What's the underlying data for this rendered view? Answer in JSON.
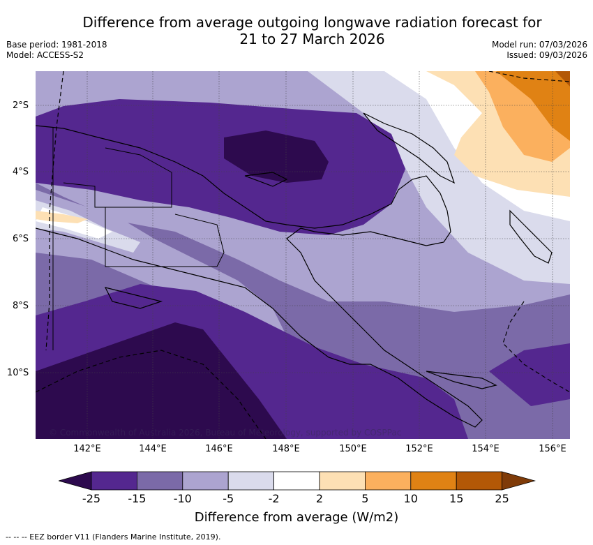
{
  "title": {
    "line1": "Difference from average outgoing longwave radiation forecast for",
    "line2": "21 to 27 March 2026"
  },
  "meta": {
    "base_period": "Base period: 1981-2018",
    "model": "Model: ACCESS-S2",
    "model_run": "Model run: 07/03/2026",
    "issued": "Issued: 09/03/2026"
  },
  "axes": {
    "lat_labels": [
      "2°S",
      "4°S",
      "6°S",
      "8°S",
      "10°S"
    ],
    "lon_labels": [
      "142°E",
      "144°E",
      "146°E",
      "148°E",
      "150°E",
      "152°E",
      "154°E",
      "156°E"
    ]
  },
  "colorbar": {
    "ticks": [
      "-25",
      "-15",
      "-10",
      "-5",
      "-2",
      "2",
      "5",
      "10",
      "15",
      "25"
    ],
    "colors": [
      "#2d0a4e",
      "#54278f",
      "#7b6aa8",
      "#aca4d0",
      "#dadbec",
      "#ffffff",
      "#fde0b4",
      "#fbb05e",
      "#e08214",
      "#b35806",
      "#7f3b08"
    ],
    "label": "Difference from average (W/m2)"
  },
  "copyright": "© Commonwealth of Australia 2026, Bureau of Meteorology, supported by COSPPac",
  "legend_note": "-- -- -- EEZ border V11 (Flanders Marine Institute, 2019)."
}
